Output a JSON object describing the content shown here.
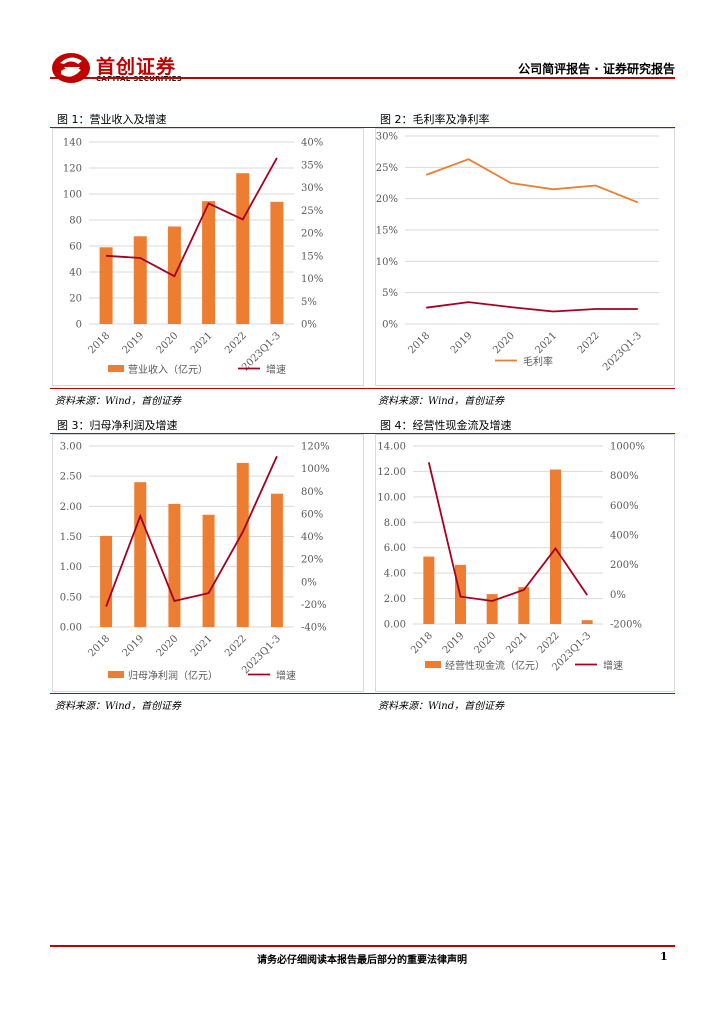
{
  "header": {
    "logo_cn": "首创证券",
    "logo_en": "CAPITAL SECURITIES",
    "doc_type": "公司简评报告 · 证券研究报告",
    "brand_color": "#c00000"
  },
  "figures": [
    {
      "title": "图 1：营业收入及增速",
      "source": "资料来源：Wind，首创证券"
    },
    {
      "title": "图 2：毛利率及净利率",
      "source": "资料来源：Wind，首创证券"
    },
    {
      "title": "图 3：归母净利润及增速",
      "source": "资料来源：Wind，首创证券"
    },
    {
      "title": "图 4：经营性现金流及增速",
      "source": "资料来源：Wind，首创证券"
    }
  ],
  "footer": {
    "disclaimer": "请务必仔细阅读本报告最后部分的重要法律声明",
    "page_number": "1"
  },
  "colors": {
    "bar": "#ed7d31",
    "line_dark": "#a50021",
    "line_orange": "#ed7d31",
    "grid": "#d9d9d9",
    "axis_text": "#595959"
  },
  "chart_data": [
    {
      "type": "bar",
      "categories": [
        "2018",
        "2019",
        "2020",
        "2021",
        "2022",
        "2023Q1-3"
      ],
      "series": [
        {
          "name": "营业收入（亿元）",
          "type": "bar",
          "axis": "left",
          "values": [
            59,
            67.5,
            75,
            94.5,
            116,
            94
          ]
        },
        {
          "name": "增速",
          "type": "line",
          "axis": "right",
          "values": [
            15,
            14.5,
            10.5,
            26.5,
            23,
            36.5
          ]
        }
      ],
      "y_left": {
        "min": 0,
        "max": 140,
        "step": 20,
        "ticks": [
          "0",
          "20",
          "40",
          "60",
          "80",
          "100",
          "120",
          "140"
        ]
      },
      "y_right": {
        "min": 0,
        "max": 40,
        "step": 5,
        "ticks": [
          "0%",
          "5%",
          "10%",
          "15%",
          "20%",
          "25%",
          "30%",
          "35%",
          "40%"
        ]
      },
      "legend_position": "bottom",
      "grid": true
    },
    {
      "type": "line",
      "categories": [
        "2018",
        "2019",
        "2020",
        "2021",
        "2022",
        "2023Q1-3"
      ],
      "series": [
        {
          "name": "毛利率",
          "type": "line",
          "axis": "left",
          "values": [
            23.8,
            26.3,
            22.5,
            21.5,
            22.1,
            19.4
          ]
        },
        {
          "type": "line",
          "axis": "left",
          "values": [
            2.6,
            3.5,
            2.7,
            2.0,
            2.4,
            2.4
          ]
        }
      ],
      "y_left": {
        "min": 0,
        "max": 30,
        "step": 5,
        "ticks": [
          "0%",
          "5%",
          "10%",
          "15%",
          "20%",
          "25%",
          "30%"
        ]
      },
      "legend_position": "bottom",
      "grid": true
    },
    {
      "type": "bar",
      "categories": [
        "2018",
        "2019",
        "2020",
        "2021",
        "2022",
        "2023Q1-3"
      ],
      "series": [
        {
          "name": "归母净利润（亿元）",
          "type": "bar",
          "axis": "left",
          "values": [
            1.51,
            2.4,
            2.04,
            1.86,
            2.72,
            2.21
          ]
        },
        {
          "name": "增速",
          "type": "line",
          "axis": "right",
          "values": [
            -22,
            58,
            -17,
            -10,
            44,
            111
          ]
        }
      ],
      "y_left": {
        "min": 0,
        "max": 3,
        "step": 0.5,
        "ticks": [
          "0.00",
          "0.50",
          "1.00",
          "1.50",
          "2.00",
          "2.50",
          "3.00"
        ]
      },
      "y_right": {
        "min": -40,
        "max": 120,
        "step": 20,
        "ticks": [
          "-40%",
          "-20%",
          "0%",
          "20%",
          "40%",
          "60%",
          "80%",
          "100%",
          "120%"
        ]
      },
      "legend_position": "bottom",
      "grid": true
    },
    {
      "type": "bar",
      "categories": [
        "2018",
        "2019",
        "2020",
        "2021",
        "2022",
        "2023Q1-3"
      ],
      "series": [
        {
          "name": "经营性现金流（亿元）",
          "type": "bar",
          "axis": "left",
          "values": [
            5.3,
            4.65,
            2.35,
            2.9,
            12.15,
            0.3
          ]
        },
        {
          "name": "增速",
          "type": "line",
          "axis": "right",
          "values": [
            890,
            -15,
            -45,
            30,
            310,
            -5
          ]
        }
      ],
      "y_left": {
        "min": 0,
        "max": 14,
        "step": 2,
        "ticks": [
          "0.00",
          "2.00",
          "4.00",
          "6.00",
          "8.00",
          "10.00",
          "12.00",
          "14.00"
        ]
      },
      "y_right": {
        "min": -200,
        "max": 1000,
        "step": 200,
        "ticks": [
          "-200%",
          "0%",
          "200%",
          "400%",
          "600%",
          "800%",
          "1000%"
        ]
      },
      "legend_position": "bottom",
      "grid": true
    }
  ]
}
